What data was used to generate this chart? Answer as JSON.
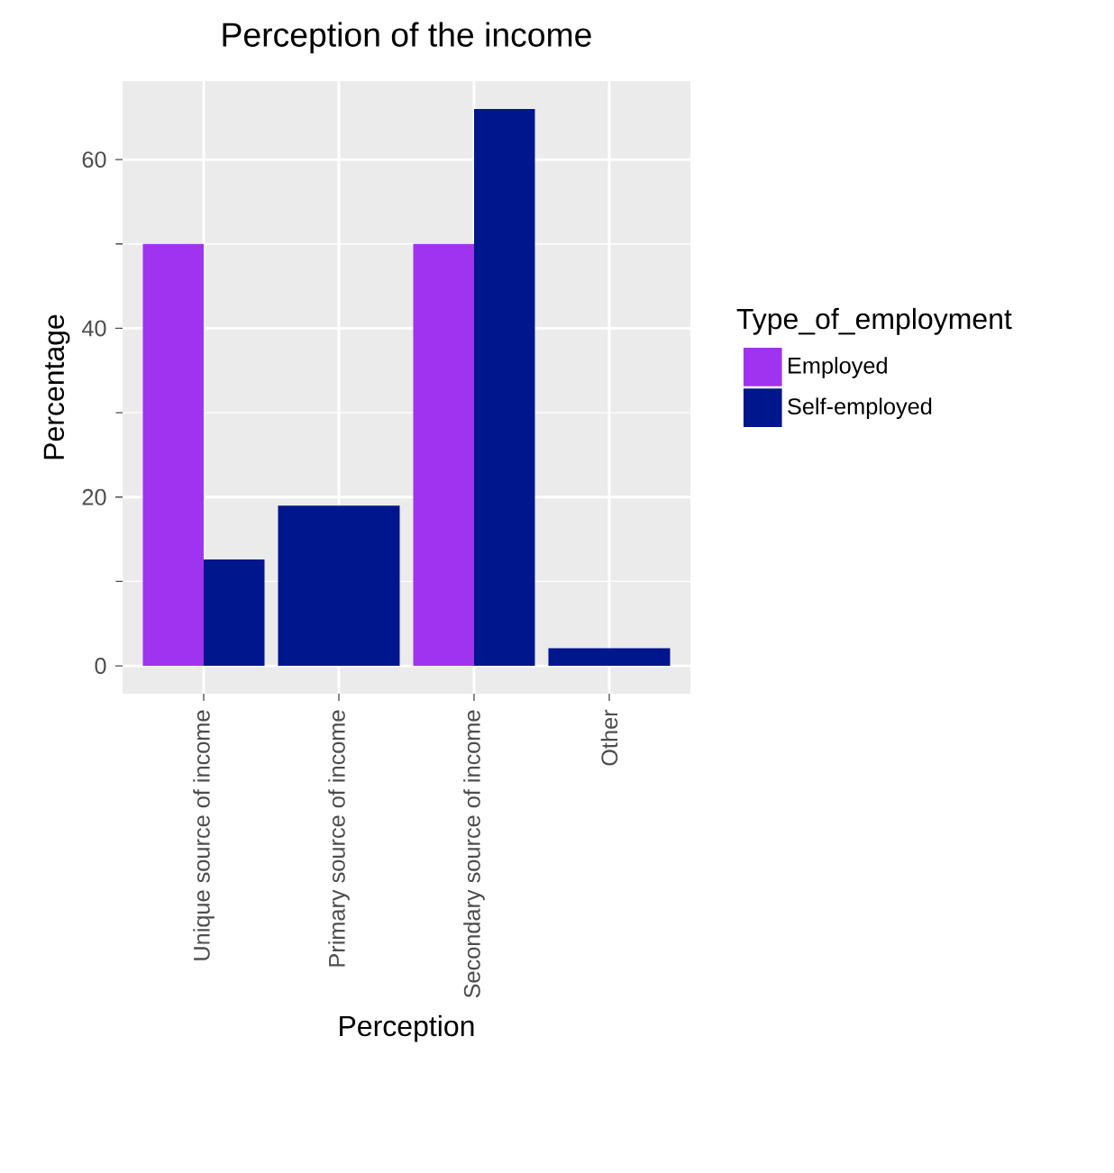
{
  "chart_data": {
    "type": "bar",
    "title": "Perception of the income",
    "xlabel": "Perception",
    "ylabel": "Percentage",
    "legend_title": "Type_of_employment",
    "categories": [
      "Unique source of income",
      "Primary source of income",
      "Secondary source of income",
      "Other"
    ],
    "series": [
      {
        "name": "Employed",
        "color": "#a033ef",
        "values": [
          50,
          null,
          50,
          null
        ]
      },
      {
        "name": "Self-employed",
        "color": "#00168c",
        "values": [
          12.6,
          19,
          66,
          2.1
        ]
      }
    ],
    "ylim": [
      -3.3,
      69.3
    ],
    "yticks": [
      0,
      20,
      40,
      60
    ],
    "grid": true,
    "legend": "right"
  }
}
